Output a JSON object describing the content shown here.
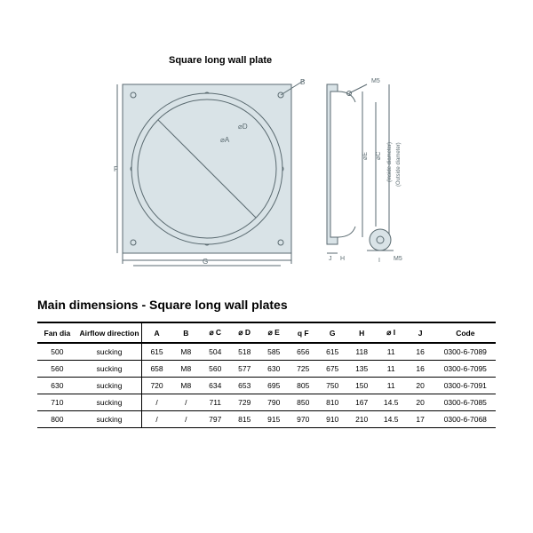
{
  "diagram": {
    "title": "Square long wall plate",
    "stroke": "#5a6a70",
    "fill": "#d9e3e7",
    "labels": {
      "front_square": {
        "F": "F",
        "G": "G",
        "B": "B",
        "diaA": "⌀A",
        "diaD": "⌀D"
      },
      "side": {
        "M5": "M5",
        "diaE": "⌀E",
        "diaC": "⌀C",
        "inside": "(Inside diameter)",
        "outside": "(Outside diameter)",
        "J": "J",
        "H": "H",
        "I": "I",
        "M5b": "M5"
      }
    }
  },
  "table": {
    "title": "Main dimensions - Square long wall plates",
    "columns": [
      "Fan dia",
      "Airflow direction",
      "A",
      "B",
      "⌀ C",
      "⌀ D",
      "⌀ E",
      "q F",
      "G",
      "H",
      "⌀ I",
      "J",
      "Code"
    ],
    "rows": [
      [
        "500",
        "sucking",
        "615",
        "M8",
        "504",
        "518",
        "585",
        "656",
        "615",
        "118",
        "11",
        "16",
        "0300-6-7089"
      ],
      [
        "560",
        "sucking",
        "658",
        "M8",
        "560",
        "577",
        "630",
        "725",
        "675",
        "135",
        "11",
        "16",
        "0300-6-7095"
      ],
      [
        "630",
        "sucking",
        "720",
        "M8",
        "634",
        "653",
        "695",
        "805",
        "750",
        "150",
        "11",
        "20",
        "0300-6-7091"
      ],
      [
        "710",
        "sucking",
        "/",
        "/",
        "711",
        "729",
        "790",
        "850",
        "810",
        "167",
        "14.5",
        "20",
        "0300-6-7085"
      ],
      [
        "800",
        "sucking",
        "/",
        "/",
        "797",
        "815",
        "915",
        "970",
        "910",
        "210",
        "14.5",
        "17",
        "0300-6-7068"
      ]
    ],
    "header_fontsize": 9,
    "cell_fontsize": 8.5,
    "border_color": "#000000",
    "background": "#ffffff"
  }
}
